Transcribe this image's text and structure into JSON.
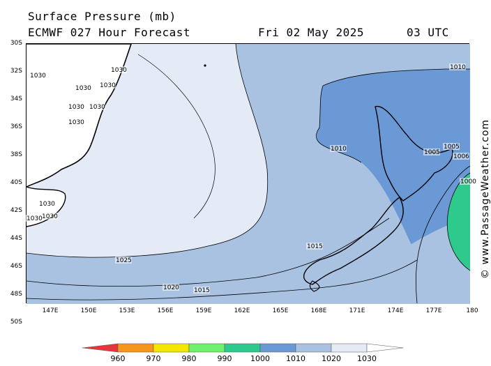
{
  "header": {
    "title": "Surface Pressure (mb)",
    "model": "ECMWF 027 Hour Forecast",
    "date": "Fri 02 May 2025",
    "time": "03 UTC"
  },
  "credit": "© www.PassageWeather.com",
  "lat_ticks": [
    "30S",
    "32S",
    "34S",
    "36S",
    "38S",
    "40S",
    "42S",
    "44S",
    "46S",
    "48S",
    "50S"
  ],
  "lon_ticks": [
    "147E",
    "150E",
    "153E",
    "156E",
    "159E",
    "162E",
    "165E",
    "168E",
    "171E",
    "174E",
    "177E",
    "180"
  ],
  "isobar_labels": [
    "1030",
    "1030",
    "1030",
    "1030",
    "1030",
    "1030",
    "1030",
    "1030",
    "1030",
    "1030",
    "1025",
    "1020",
    "1015",
    "1015",
    "1010",
    "1010",
    "1005",
    "1005",
    "1006",
    "1000"
  ],
  "legend": {
    "values": [
      "960",
      "970",
      "980",
      "990",
      "1000",
      "1010",
      "1020",
      "1030"
    ],
    "colors": [
      "#e8343c",
      "#f5961e",
      "#f5e600",
      "#6ef06e",
      "#2ec98c",
      "#6b99d6",
      "#a9c2e2",
      "#e4ebf7"
    ]
  },
  "map_colors": {
    "gt_1030": "#ffffff",
    "p1025_1030": "#e4ebf7",
    "p1015_1025": "#a9c2e2",
    "p1000_1015": "#6b99d6",
    "lt_1000": "#2ec98c"
  }
}
